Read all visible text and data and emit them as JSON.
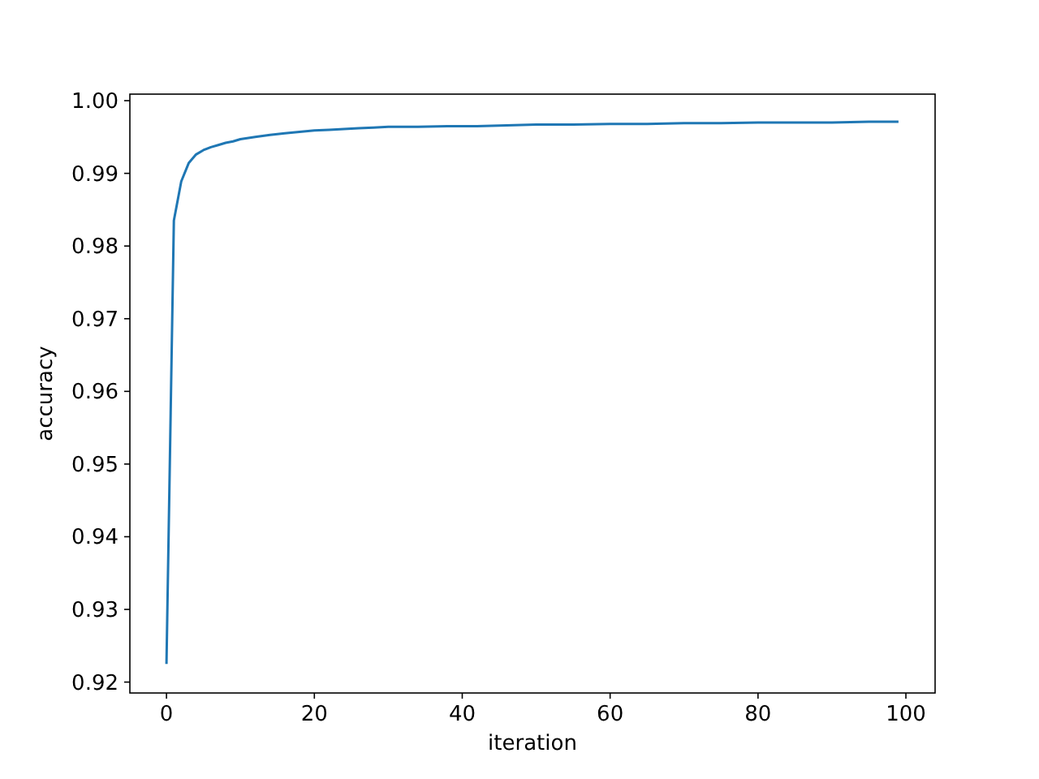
{
  "chart_data": {
    "type": "line",
    "xlabel": "iteration",
    "ylabel": "accuracy",
    "xlim": [
      -4.95,
      103.95
    ],
    "ylim": [
      0.9185,
      1.0009
    ],
    "xticks": [
      0,
      20,
      40,
      60,
      80,
      100
    ],
    "yticks": [
      {
        "value": 0.92,
        "label": "0.92"
      },
      {
        "value": 0.93,
        "label": "0.93"
      },
      {
        "value": 0.94,
        "label": "0.94"
      },
      {
        "value": 0.95,
        "label": "0.95"
      },
      {
        "value": 0.96,
        "label": "0.96"
      },
      {
        "value": 0.97,
        "label": "0.97"
      },
      {
        "value": 0.98,
        "label": "0.98"
      },
      {
        "value": 0.99,
        "label": "0.99"
      },
      {
        "value": 1.0,
        "label": "1.00"
      }
    ],
    "grid": false,
    "series": [
      {
        "color": "#1f77b4",
        "x": [
          0,
          1,
          2,
          3,
          4,
          5,
          6,
          7,
          8,
          9,
          10,
          12,
          14,
          16,
          18,
          20,
          22,
          24,
          26,
          28,
          30,
          34,
          38,
          42,
          46,
          50,
          55,
          60,
          65,
          70,
          75,
          80,
          85,
          90,
          95,
          99
        ],
        "values": [
          0.9225,
          0.9835,
          0.9889,
          0.9914,
          0.9926,
          0.9932,
          0.9936,
          0.9939,
          0.9942,
          0.9944,
          0.9947,
          0.995,
          0.9953,
          0.9955,
          0.9957,
          0.9959,
          0.996,
          0.9961,
          0.9962,
          0.9963,
          0.9964,
          0.9964,
          0.9965,
          0.9965,
          0.9966,
          0.9967,
          0.9967,
          0.9968,
          0.9968,
          0.9969,
          0.9969,
          0.997,
          0.997,
          0.997,
          0.9971,
          0.9971
        ]
      }
    ]
  }
}
